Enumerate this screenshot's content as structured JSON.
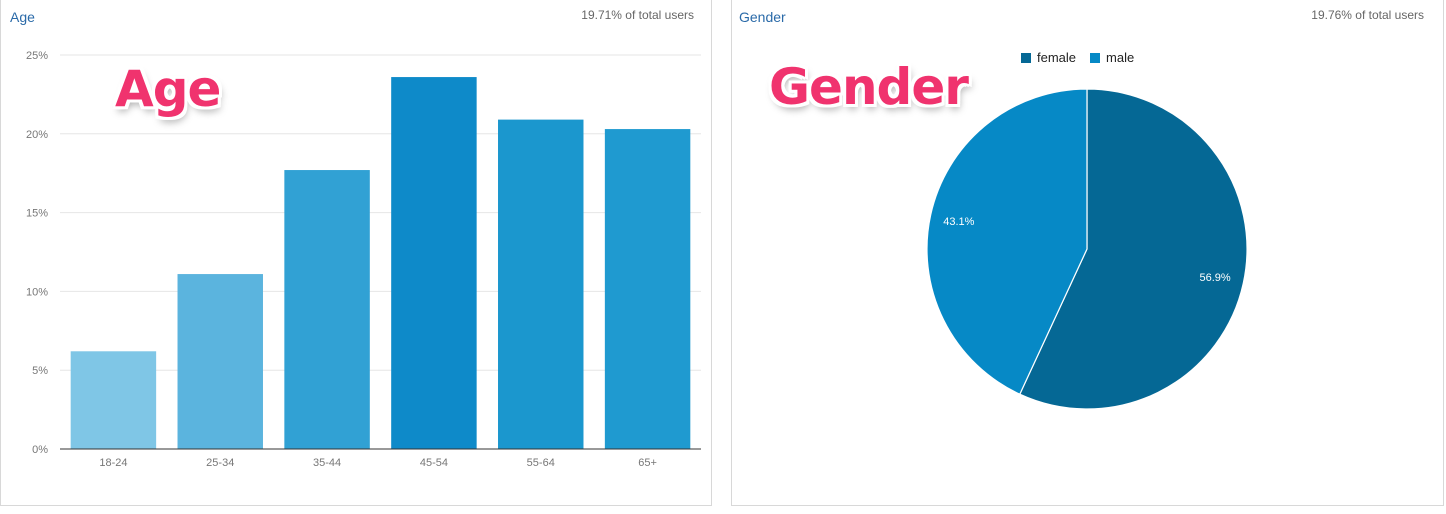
{
  "age_panel": {
    "title": "Age",
    "stat": "19.71% of total users",
    "overlay": "Age"
  },
  "gender_panel": {
    "title": "Gender",
    "stat": "19.76% of total users",
    "overlay": "Gender"
  },
  "chart_data": [
    {
      "type": "bar",
      "title": "Age",
      "categories": [
        "18-24",
        "25-34",
        "35-44",
        "45-54",
        "55-64",
        "65+"
      ],
      "values": [
        6.2,
        11.1,
        17.7,
        23.6,
        20.9,
        20.3
      ],
      "colors": [
        "#7fc6e6",
        "#5bb4de",
        "#31a1d4",
        "#0e8ac9",
        "#1b97ce",
        "#1f9ad0"
      ],
      "ylim": [
        0,
        25
      ],
      "yticks": [
        "0%",
        "5%",
        "10%",
        "15%",
        "20%",
        "25%"
      ],
      "ytick_values": [
        0,
        5,
        10,
        15,
        20,
        25
      ],
      "grid": true,
      "xlabel": "",
      "ylabel": ""
    },
    {
      "type": "pie",
      "title": "Gender",
      "slices": [
        {
          "label": "female",
          "value": 56.9,
          "display": "56.9%",
          "color": "#056895"
        },
        {
          "label": "male",
          "value": 43.1,
          "display": "43.1%",
          "color": "#0689c6"
        }
      ],
      "legend_position": "top"
    }
  ]
}
